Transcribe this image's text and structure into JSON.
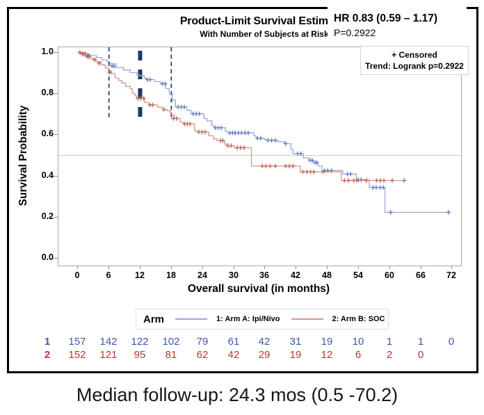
{
  "header": {
    "title": "Product-Limit Survival Estimates",
    "subtitle": "With Number of Subjects at Risk",
    "hr_line1": "HR 0.83 (0.59 – 1.17)",
    "hr_line2": "P=0.2922"
  },
  "plot_legend": {
    "censored": "+ Censored",
    "trend": "Trend: Logrank p=0.2922"
  },
  "axes": {
    "y_title": "Survival Probability",
    "x_title": "Overall survival (in months)",
    "y_tick_labels": [
      "1.0",
      "0.8",
      "0.6",
      "0.4",
      "0.2",
      "0.0"
    ],
    "y_tick_values": [
      1.0,
      0.8,
      0.6,
      0.4,
      0.2,
      0.0
    ],
    "x_tick_labels": [
      "0",
      "6",
      "12",
      "18",
      "24",
      "30",
      "36",
      "42",
      "48",
      "54",
      "60",
      "66",
      "72"
    ],
    "x_tick_values": [
      0,
      6,
      12,
      18,
      24,
      30,
      36,
      42,
      48,
      54,
      60,
      66,
      72
    ]
  },
  "arm_legend": {
    "title": "Arm",
    "items": [
      {
        "label": "1: Arm A: Ipi/Nivo",
        "color_key": "arm_a_line"
      },
      {
        "label": "2: Arm B: SOC",
        "color_key": "arm_b_line"
      }
    ]
  },
  "at_risk": {
    "rows": [
      {
        "label": "1",
        "color_key": "arm_a_text",
        "values": [
          "157",
          "142",
          "122",
          "102",
          "79",
          "61",
          "42",
          "31",
          "19",
          "10",
          "1",
          "1",
          "0"
        ]
      },
      {
        "label": "2",
        "color_key": "arm_b_text",
        "values": [
          "152",
          "121",
          "95",
          "81",
          "62",
          "42",
          "29",
          "19",
          "12",
          "6",
          "2",
          "0"
        ]
      }
    ]
  },
  "footer": {
    "text": "Median follow-up: 24.3 mos (0.5 -70.2)"
  },
  "colors": {
    "arm_a_line": "#9aa9d4",
    "arm_a_mark": "#647fc0",
    "arm_a_text": "#3e56a5",
    "arm_b_line": "#d0998d",
    "arm_b_mark": "#bd6a59",
    "arm_b_text": "#b23a2e",
    "milestone": "#1d3a63",
    "reference": "#c9c9c9",
    "frame": "#a8a8a8"
  },
  "chart_data": {
    "type": "line",
    "subtype": "kaplan-meier-step",
    "title": "Product-Limit Survival Estimates",
    "subtitle": "With Number of Subjects at Risk",
    "xlabel": "Overall survival (in months)",
    "ylabel": "Survival Probability",
    "xlim": [
      0,
      74
    ],
    "ylim": [
      0.0,
      1.0
    ],
    "x_ticks": [
      0,
      6,
      12,
      18,
      24,
      30,
      36,
      42,
      48,
      54,
      60,
      66,
      72
    ],
    "reference_line_p": 0.5,
    "milestone_months": [
      6,
      12,
      18
    ],
    "annotations": [
      "HR 0.83 (0.59 – 1.17)",
      "P=0.2922",
      "Trend: Logrank p=0.2922",
      "+ Censored"
    ],
    "series": [
      {
        "name": "1: Arm A: Ipi/Nivo",
        "color_key_line": "arm_a_line",
        "color_key_mark": "arm_a_mark",
        "steps": [
          [
            0,
            1.0
          ],
          [
            0.8,
            0.993
          ],
          [
            2.3,
            0.985
          ],
          [
            3.6,
            0.976
          ],
          [
            4.6,
            0.965
          ],
          [
            5.6,
            0.955
          ],
          [
            6.2,
            0.945
          ],
          [
            7.4,
            0.926
          ],
          [
            8.8,
            0.915
          ],
          [
            10.1,
            0.902
          ],
          [
            11.4,
            0.892
          ],
          [
            11.9,
            0.886
          ],
          [
            12.8,
            0.875
          ],
          [
            13.2,
            0.868
          ],
          [
            14.8,
            0.858
          ],
          [
            15.9,
            0.848
          ],
          [
            16.9,
            0.825
          ],
          [
            17.6,
            0.8
          ],
          [
            18.2,
            0.768
          ],
          [
            18.8,
            0.735
          ],
          [
            21,
            0.719
          ],
          [
            21.8,
            0.702
          ],
          [
            24.3,
            0.679
          ],
          [
            24.9,
            0.668
          ],
          [
            25.8,
            0.645
          ],
          [
            26.2,
            0.634
          ],
          [
            28.4,
            0.617
          ],
          [
            28.9,
            0.609
          ],
          [
            33.9,
            0.595
          ],
          [
            34.3,
            0.583
          ],
          [
            35.9,
            0.578
          ],
          [
            36.3,
            0.573
          ],
          [
            38.5,
            0.566
          ],
          [
            39.8,
            0.557
          ],
          [
            41,
            0.53
          ],
          [
            41.4,
            0.508
          ],
          [
            43.4,
            0.488
          ],
          [
            44.4,
            0.476
          ],
          [
            45.3,
            0.465
          ],
          [
            46.3,
            0.448
          ],
          [
            47,
            0.426
          ],
          [
            51,
            0.409
          ],
          [
            53.6,
            0.381
          ],
          [
            56.1,
            0.344
          ],
          [
            59.1,
            0.223
          ],
          [
            71.3,
            0.223
          ]
        ],
        "censors": [
          [
            1,
            0.993
          ],
          [
            1.5,
            0.993
          ],
          [
            2,
            0.985
          ],
          [
            6.6,
            0.935
          ],
          [
            7,
            0.932
          ],
          [
            13.4,
            0.868
          ],
          [
            13.9,
            0.868
          ],
          [
            16.3,
            0.848
          ],
          [
            16.8,
            0.848
          ],
          [
            19.3,
            0.735
          ],
          [
            19.9,
            0.735
          ],
          [
            20.5,
            0.735
          ],
          [
            22.2,
            0.702
          ],
          [
            22.8,
            0.702
          ],
          [
            23.4,
            0.702
          ],
          [
            26.5,
            0.634
          ],
          [
            27,
            0.634
          ],
          [
            27.6,
            0.634
          ],
          [
            29.3,
            0.609
          ],
          [
            29.8,
            0.609
          ],
          [
            30.3,
            0.609
          ],
          [
            30.9,
            0.609
          ],
          [
            31.5,
            0.609
          ],
          [
            32.2,
            0.609
          ],
          [
            32.8,
            0.609
          ],
          [
            34.6,
            0.583
          ],
          [
            35.2,
            0.583
          ],
          [
            36.6,
            0.573
          ],
          [
            37.3,
            0.573
          ],
          [
            38,
            0.573
          ],
          [
            40,
            0.557
          ],
          [
            42.3,
            0.508
          ],
          [
            42.9,
            0.508
          ],
          [
            44.7,
            0.476
          ],
          [
            45.1,
            0.476
          ],
          [
            45.7,
            0.465
          ],
          [
            46,
            0.465
          ],
          [
            47.5,
            0.426
          ],
          [
            48.1,
            0.426
          ],
          [
            48.8,
            0.426
          ],
          [
            51.9,
            0.409
          ],
          [
            52.5,
            0.409
          ],
          [
            54,
            0.381
          ],
          [
            54.5,
            0.381
          ],
          [
            56.8,
            0.344
          ],
          [
            57.4,
            0.344
          ],
          [
            58.2,
            0.344
          ],
          [
            58.8,
            0.344
          ],
          [
            60.2,
            0.223
          ],
          [
            71.3,
            0.223
          ]
        ]
      },
      {
        "name": "2: Arm B: SOC",
        "color_key_line": "arm_b_line",
        "color_key_mark": "arm_b_mark",
        "steps": [
          [
            0,
            1.0
          ],
          [
            0.6,
            0.993
          ],
          [
            1.5,
            0.98
          ],
          [
            2.5,
            0.97
          ],
          [
            3.5,
            0.955
          ],
          [
            4.5,
            0.94
          ],
          [
            5.3,
            0.925
          ],
          [
            5.9,
            0.91
          ],
          [
            6.5,
            0.897
          ],
          [
            7.2,
            0.875
          ],
          [
            7.9,
            0.864
          ],
          [
            8.5,
            0.852
          ],
          [
            9.2,
            0.835
          ],
          [
            10.1,
            0.824
          ],
          [
            10.5,
            0.802
          ],
          [
            11,
            0.79
          ],
          [
            11.3,
            0.777
          ],
          [
            12.8,
            0.757
          ],
          [
            13.6,
            0.745
          ],
          [
            15.4,
            0.734
          ],
          [
            16.3,
            0.723
          ],
          [
            17.2,
            0.717
          ],
          [
            17.8,
            0.707
          ],
          [
            18.1,
            0.696
          ],
          [
            18.6,
            0.679
          ],
          [
            19.7,
            0.662
          ],
          [
            20.3,
            0.653
          ],
          [
            22.5,
            0.62
          ],
          [
            22.9,
            0.614
          ],
          [
            25.2,
            0.595
          ],
          [
            26.1,
            0.58
          ],
          [
            26.8,
            0.572
          ],
          [
            28.2,
            0.555
          ],
          [
            28.6,
            0.547
          ],
          [
            30.1,
            0.537
          ],
          [
            33.4,
            0.448
          ],
          [
            42.8,
            0.42
          ],
          [
            50.7,
            0.378
          ],
          [
            63,
            0.378
          ]
        ],
        "censors": [
          [
            0.4,
            1.0
          ],
          [
            0.9,
            0.993
          ],
          [
            1.3,
            0.993
          ],
          [
            1.8,
            0.98
          ],
          [
            2.2,
            0.98
          ],
          [
            3.2,
            0.965
          ],
          [
            4.1,
            0.948
          ],
          [
            6.2,
            0.903
          ],
          [
            11.6,
            0.777
          ],
          [
            12.1,
            0.777
          ],
          [
            12.7,
            0.777
          ],
          [
            13.9,
            0.745
          ],
          [
            14.4,
            0.745
          ],
          [
            16.6,
            0.723
          ],
          [
            18.4,
            0.679
          ],
          [
            19,
            0.679
          ],
          [
            20.6,
            0.653
          ],
          [
            21.1,
            0.653
          ],
          [
            21.6,
            0.653
          ],
          [
            23.3,
            0.614
          ],
          [
            23.9,
            0.614
          ],
          [
            24.5,
            0.614
          ],
          [
            27.5,
            0.572
          ],
          [
            27.9,
            0.572
          ],
          [
            28.9,
            0.547
          ],
          [
            29.5,
            0.547
          ],
          [
            30.7,
            0.537
          ],
          [
            31.3,
            0.537
          ],
          [
            32,
            0.537
          ],
          [
            35.5,
            0.448
          ],
          [
            36.2,
            0.448
          ],
          [
            37,
            0.448
          ],
          [
            38,
            0.448
          ],
          [
            40,
            0.448
          ],
          [
            40.7,
            0.448
          ],
          [
            41.4,
            0.448
          ],
          [
            43.3,
            0.42
          ],
          [
            44.1,
            0.42
          ],
          [
            44.8,
            0.42
          ],
          [
            45.4,
            0.42
          ],
          [
            47.2,
            0.42
          ],
          [
            51.3,
            0.378
          ],
          [
            52.1,
            0.378
          ],
          [
            53.1,
            0.378
          ],
          [
            53.7,
            0.378
          ],
          [
            55.5,
            0.378
          ],
          [
            57.5,
            0.378
          ],
          [
            58.2,
            0.378
          ],
          [
            58.9,
            0.378
          ],
          [
            60.5,
            0.378
          ],
          [
            62.8,
            0.378
          ]
        ]
      }
    ],
    "at_risk_table": {
      "months": [
        0,
        6,
        12,
        18,
        24,
        30,
        36,
        42,
        48,
        54,
        60,
        66,
        72
      ],
      "arm_1": [
        157,
        142,
        122,
        102,
        79,
        61,
        42,
        31,
        19,
        10,
        1,
        1,
        0
      ],
      "arm_2": [
        152,
        121,
        95,
        81,
        62,
        42,
        29,
        19,
        12,
        6,
        2,
        0
      ]
    }
  }
}
